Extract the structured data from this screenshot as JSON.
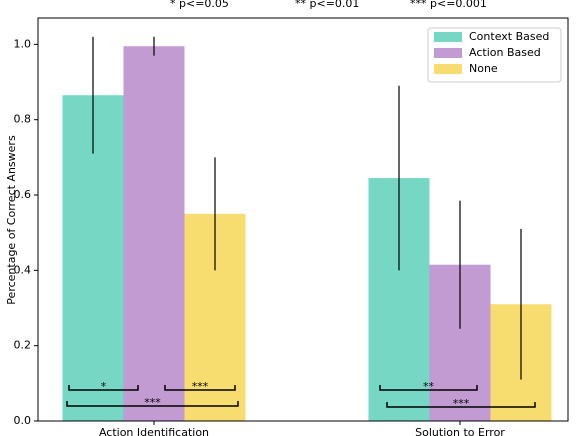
{
  "chart_data": {
    "type": "bar",
    "annotations_top": [
      "* p<=0.05",
      "** p<=0.01",
      "*** p<=0.001"
    ],
    "y_label": "Percentage of Correct Answers",
    "categories": [
      "Action Identification",
      "Solution to Error"
    ],
    "series": [
      {
        "name": "Context Based",
        "color": "#76d7c4",
        "values": [
          0.865,
          0.645
        ],
        "errors": [
          0.155,
          0.245
        ]
      },
      {
        "name": "Action Based",
        "color": "#c39bd3",
        "values": [
          0.995,
          0.415
        ],
        "errors": [
          0.025,
          0.17
        ]
      },
      {
        "name": "None",
        "color": "#f7dc6f",
        "values": [
          0.55,
          0.31
        ],
        "errors": [
          0.15,
          0.2
        ]
      }
    ],
    "significance": [
      "*",
      "***",
      "***",
      "**",
      "***"
    ],
    "ylim": [
      0,
      1.07
    ],
    "yticks": [
      {
        "value": 0,
        "label": "0.0"
      },
      0.2,
      0.4,
      0.6,
      0.8,
      {
        "value": 1,
        "label": "1.0"
      }
    ],
    "legend": "upper right"
  }
}
